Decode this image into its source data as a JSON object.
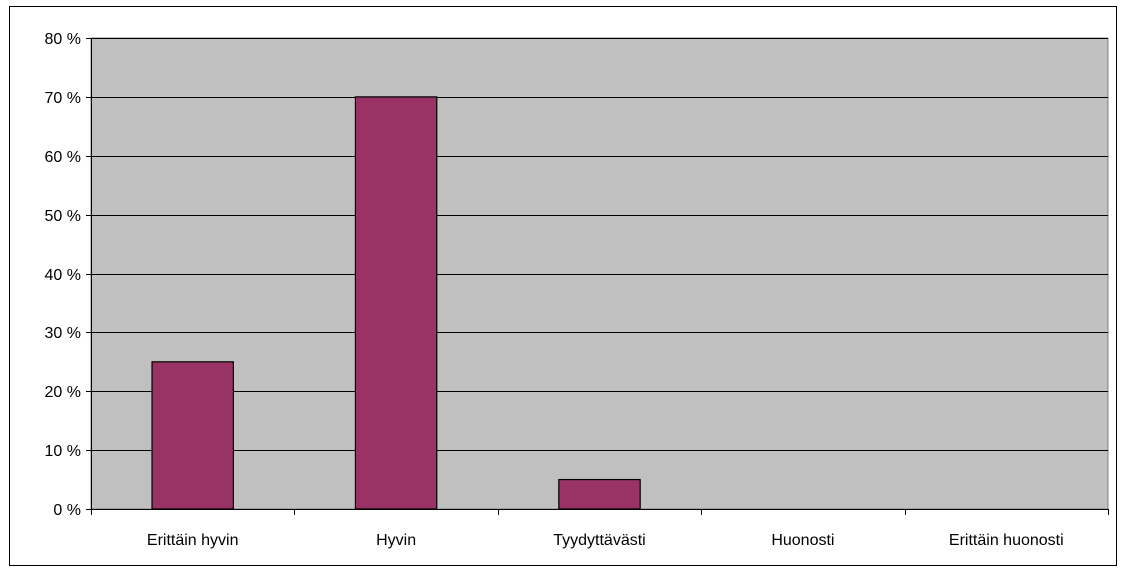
{
  "chart_data": {
    "type": "bar",
    "categories": [
      "Erittäin hyvin",
      "Hyvin",
      "Tyydyttävästi",
      "Huonosti",
      "Erittäin huonosti"
    ],
    "values": [
      25,
      70,
      5,
      0,
      0
    ],
    "yticks": [
      "0 %",
      "10 %",
      "20 %",
      "30 %",
      "40 %",
      "50 %",
      "60 %",
      "70 %",
      "80 %"
    ],
    "ylim": [
      0,
      80
    ],
    "grid": true,
    "legend": "none",
    "colors": {
      "plot_background": "#c0c0c0",
      "bar_fill": "#993366",
      "bar_stroke": "#000000",
      "gridline": "#000000"
    }
  }
}
